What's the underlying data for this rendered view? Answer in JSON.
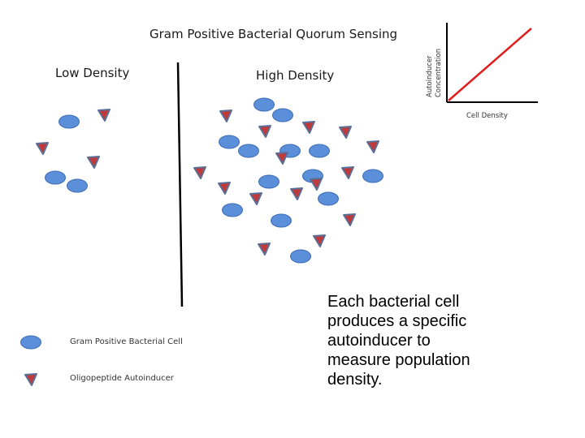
{
  "diagram": {
    "title": "Gram Positive Bacterial Quorum Sensing",
    "low_density_label": "Low Density",
    "high_density_label": "High Density"
  },
  "inset_graph": {
    "ylabel_line1": "Autoinducer",
    "ylabel_line2": "Concentration",
    "xlabel": "Cell Density",
    "trend_color": "#e02020"
  },
  "legend": {
    "cell_label": "Gram Positive Bacterial Cell",
    "autoinducer_label": "Oligopeptide Autoinducer"
  },
  "caption": "Each bacterial cell\nproduces a specific\nautoinducer to\nmeasure population\ndensity.",
  "colors": {
    "cell_fill": "#5b8fd9",
    "cell_stroke": "#3d6db5",
    "autoinducer_fill": "#c0393b",
    "autoinducer_stroke": "#5a6f96"
  }
}
